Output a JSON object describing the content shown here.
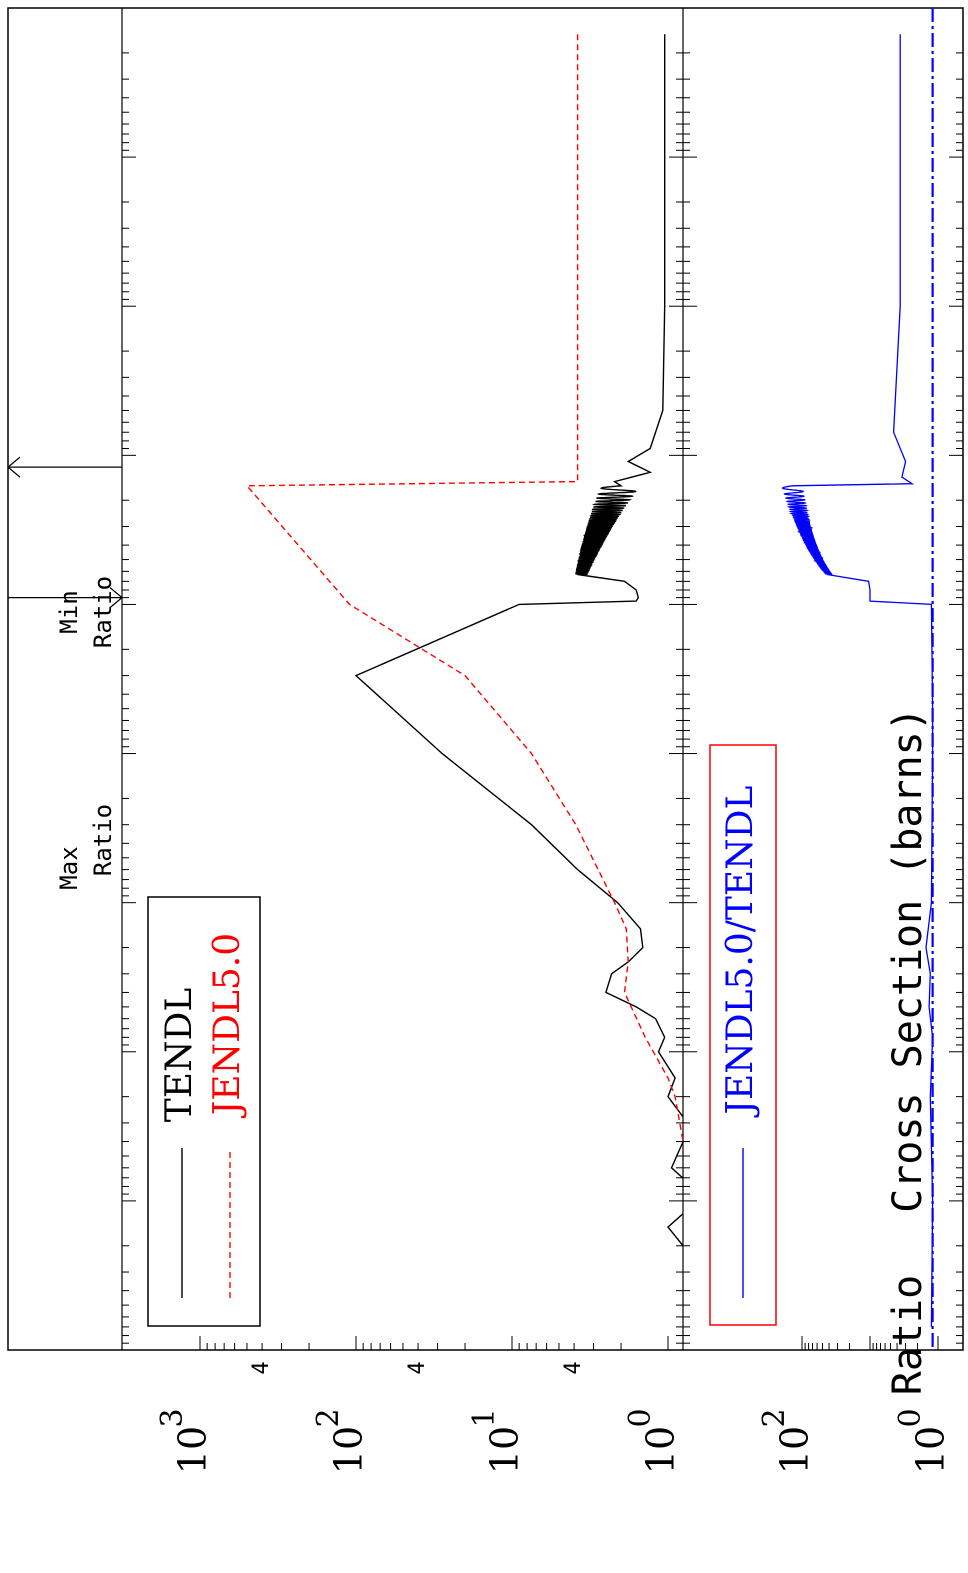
{
  "chart_data": [
    {
      "type": "line",
      "panel": "cross-section",
      "ylabel": "Cross Section  (barns)",
      "yscale": "log",
      "ylim": [
        0.5,
        2000
      ],
      "ytick_labels": [
        "10",
        "10",
        "10",
        "10"
      ],
      "ytick_exponents": [
        "0",
        "1",
        "2",
        "3"
      ],
      "minor_tick_labels": [
        "4",
        "4",
        "4"
      ],
      "xscale": "log",
      "xlim": [
        1,
        1000000000
      ],
      "grid": false,
      "legend_position": "top-left",
      "legend": {
        "tendl": "TENDL",
        "jendl": "JENDL5.0"
      },
      "annotations": {
        "max": "Max",
        "max_ratio": "Ratio",
        "min": "Min",
        "min_ratio": "Ratio",
        "max_arrow_x": 1200,
        "min_arrow_x": 9000,
        "divider_x": 1000
      },
      "series": [
        {
          "name": "TENDL",
          "color": "#000000",
          "style": "solid",
          "x": [
            1.5,
            10,
            100,
            500,
            900,
            1100,
            1300,
            1500,
            1800,
            2200,
            2700,
            3300,
            4000,
            4800,
            5600,
            6300,
            7000,
            8000,
            9000,
            9500,
            10000,
            30000,
            100000,
            300000,
            600000,
            1000000,
            1500000,
            2000000,
            2500000,
            3000000,
            4000000,
            5000000,
            6000000,
            8000000,
            10000000,
            15000000,
            20000000,
            30000000,
            40000000,
            60000000,
            80000000,
            100000000,
            150000000,
            200000000,
            300000000,
            500000000,
            700000000
          ],
          "y": [
            1.05,
            1.05,
            1.05,
            1.08,
            1.3,
            1.8,
            1.3,
            2.2,
            1.6,
            2.8,
            2.0,
            3.0,
            2.8,
            3.2,
            3.8,
            5.0,
            1.9,
            1.6,
            1.55,
            1.6,
            9.0,
            100,
            28,
            7.5,
            3.8,
            2.1,
            1.5,
            1.45,
            1.8,
            2.3,
            2.5,
            1.6,
            1.2,
            1.05,
            1.15,
            0.9,
            1.0,
            0.75,
            0.8,
            0.95,
            0.7,
            0.65,
            1.0,
            0.8,
            0.6,
            0.75,
            0.55
          ]
        },
        {
          "name": "JENDL5.0",
          "color": "#ff0000",
          "style": "dashed",
          "x": [
            1.5,
            10,
            100,
            1000,
            1500,
            1600,
            10000,
            30000,
            100000,
            300000,
            1000000,
            1500000,
            2500000,
            4000000,
            8000000,
            15000000,
            20000000,
            40000000
          ],
          "y": [
            3.8,
            3.8,
            3.8,
            3.8,
            3.8,
            500,
            110,
            20,
            7.5,
            3.9,
            2.2,
            1.85,
            1.8,
            1.9,
            1.4,
            1.0,
            0.9,
            0.8
          ]
        }
      ]
    },
    {
      "type": "line",
      "panel": "ratio",
      "ylabel": "Ratio",
      "yscale": "log",
      "ylim": [
        1,
        200
      ],
      "ytick_labels": [
        "10",
        "10"
      ],
      "ytick_exponents": [
        "0",
        "2"
      ],
      "xscale": "log",
      "xlim": [
        1,
        1000000000
      ],
      "grid": false,
      "legend_position": "top-left",
      "legend": {
        "ratio": "JENDL5.0/TENDL"
      },
      "reference_line": 1.2,
      "series": [
        {
          "name": "JENDL5.0/TENDL",
          "color": "#0000ff",
          "style": "solid",
          "x": [
            1.5,
            10,
            100,
            700,
            1100,
            1400,
            1550,
            1650,
            2000,
            2500,
            3000,
            3500,
            4000,
            5000,
            6300,
            7000,
            8000,
            9500,
            10000,
            50000,
            100000,
            1000000,
            2000000,
            3000000,
            5000000,
            8000000,
            20000000,
            100000000,
            700000000
          ],
          "y": [
            3.6,
            3.6,
            3.6,
            4.5,
            3.0,
            3.4,
            2.4,
            190,
            140,
            200,
            110,
            150,
            70,
            70,
            30,
            10.5,
            10.0,
            10.0,
            1.25,
            1.2,
            1.2,
            1.25,
            1.5,
            1.3,
            1.35,
            1.2,
            1.3,
            1.2,
            1.25
          ]
        }
      ]
    }
  ]
}
